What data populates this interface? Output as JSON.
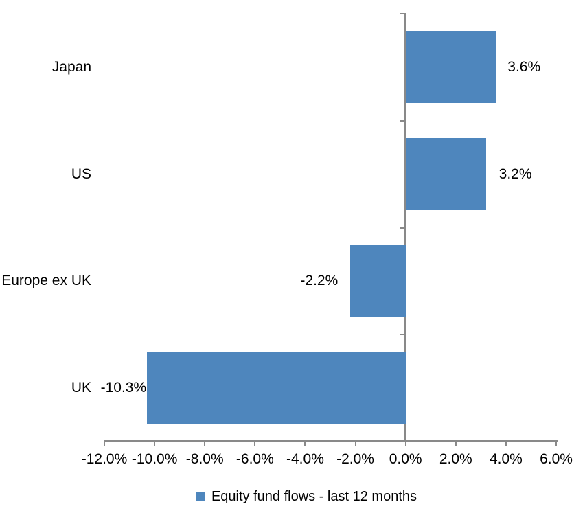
{
  "chart_data": {
    "type": "bar",
    "orientation": "horizontal",
    "title": "",
    "categories": [
      "Japan",
      "US",
      "Europe ex UK",
      "UK"
    ],
    "values": [
      3.6,
      3.2,
      -2.2,
      -10.3
    ],
    "value_labels": [
      "3.6%",
      "3.2%",
      "-2.2%",
      "-10.3%"
    ],
    "series_name": "Equity fund flows - last 12 months",
    "xlim": [
      -12,
      6
    ],
    "x_tick_values": [
      -12,
      -10,
      -8,
      -6,
      -4,
      -2,
      0,
      2,
      4,
      6
    ],
    "x_tick_labels": [
      "-12.0%",
      "-10.0%",
      "-8.0%",
      "-6.0%",
      "-4.0%",
      "-2.0%",
      "0.0%",
      "2.0%",
      "4.0%",
      "6.0%"
    ],
    "grid": false,
    "legend_position": "bottom",
    "bar_color": "#4e86bd",
    "axis_color": "#898989",
    "text_color": "#000000"
  },
  "legend": {
    "label": "Equity fund flows - last 12 months"
  }
}
